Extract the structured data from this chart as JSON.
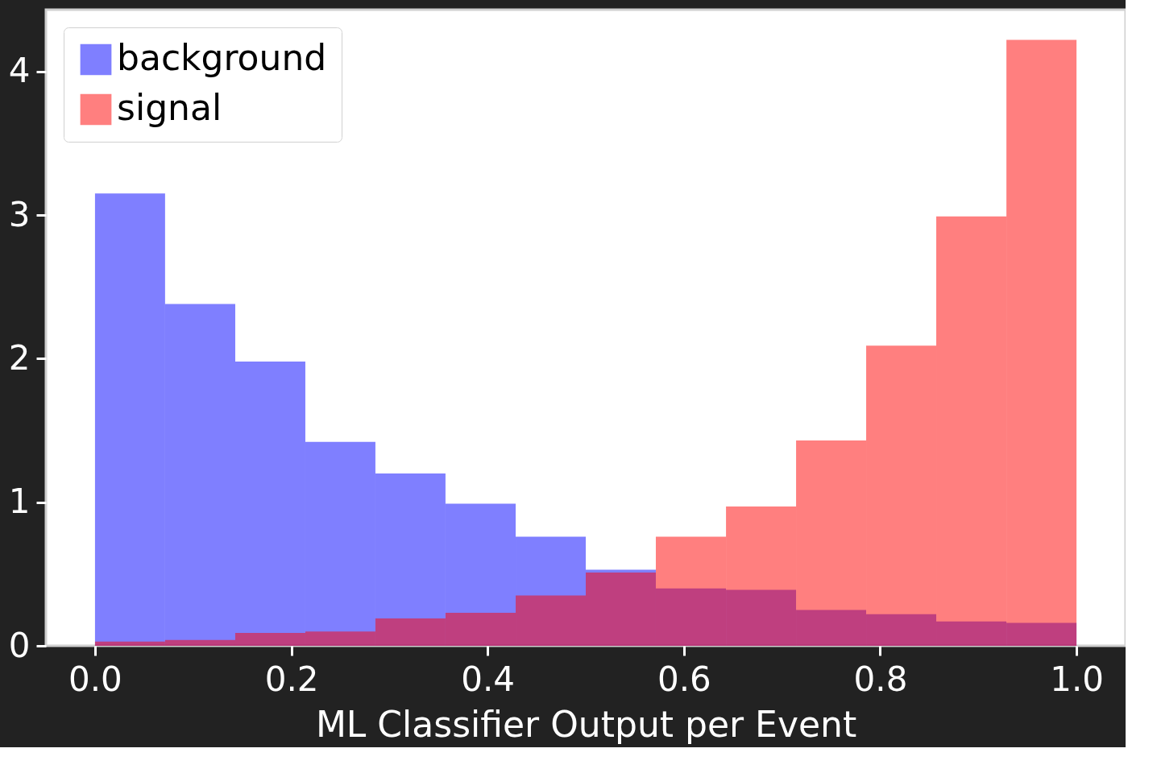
{
  "chart_data": {
    "type": "histogram",
    "xlabel": "ML Classifier Output per Event",
    "bins": [
      0,
      0.0714,
      0.1429,
      0.2143,
      0.2857,
      0.3571,
      0.4286,
      0.5,
      0.5714,
      0.6429,
      0.7143,
      0.7857,
      0.8571,
      0.9286,
      1
    ],
    "series": [
      {
        "name": "background",
        "color": "#0000ff",
        "values": [
          3.15,
          2.38,
          1.98,
          1.42,
          1.2,
          0.99,
          0.76,
          0.53,
          0.4,
          0.39,
          0.25,
          0.22,
          0.17,
          0.16
        ]
      },
      {
        "name": "signal",
        "color": "#ff0000",
        "values": [
          0.03,
          0.04,
          0.09,
          0.1,
          0.19,
          0.23,
          0.35,
          0.51,
          0.76,
          0.97,
          1.43,
          2.09,
          2.99,
          4.22
        ]
      }
    ],
    "xlim": [
      -0.05,
      1.05
    ],
    "ylim": [
      0,
      4.43
    ],
    "xticks": [
      {
        "value": 0,
        "label": "0.0"
      },
      0.2,
      0.4,
      0.6,
      0.8,
      {
        "value": 1,
        "label": "1.0"
      }
    ],
    "yticks": [
      0,
      1,
      2,
      3,
      4
    ],
    "legend": "top left",
    "grid": false
  }
}
